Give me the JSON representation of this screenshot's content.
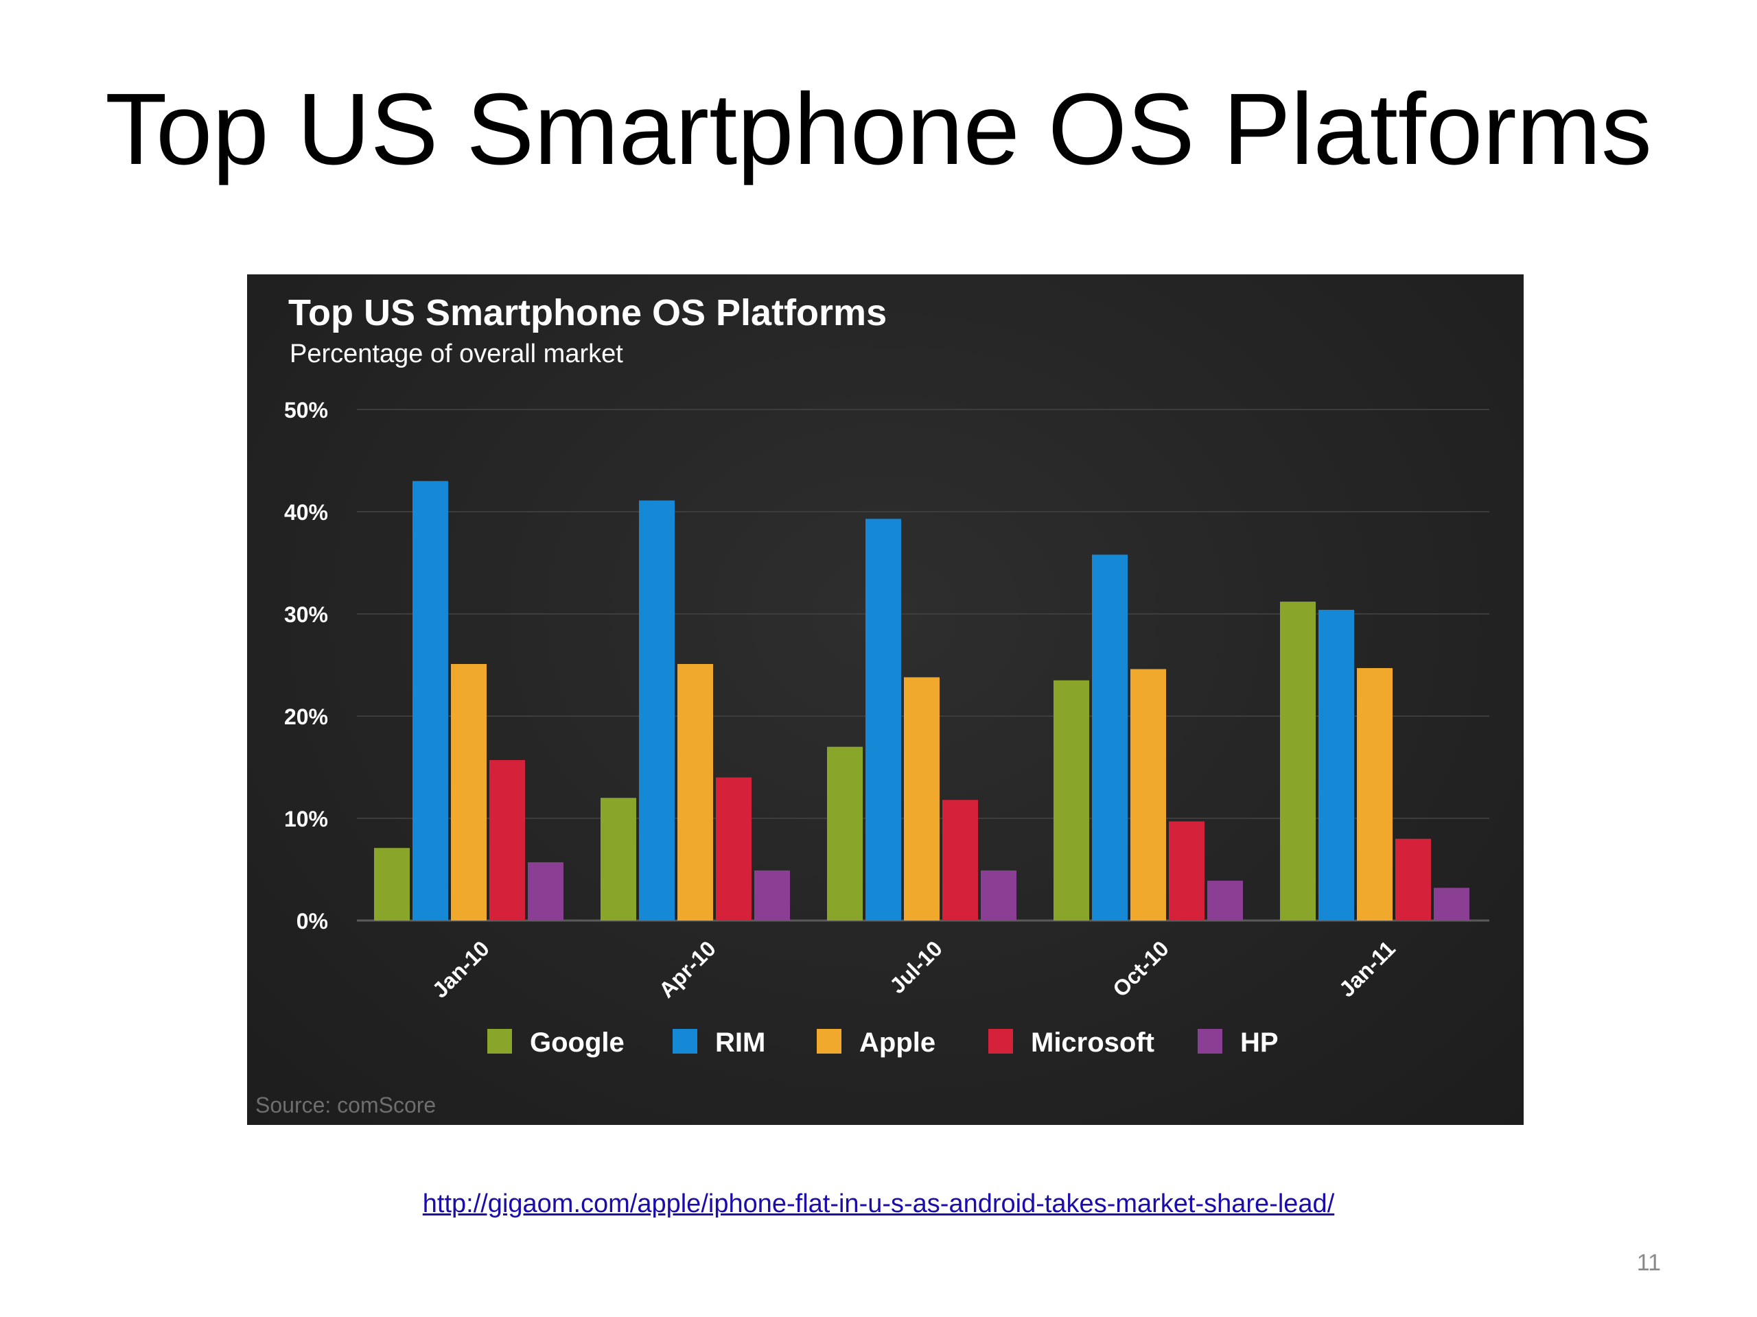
{
  "slide": {
    "title": "Top US Smartphone OS Platforms",
    "link": "http://gigaom.com/apple/iphone-flat-in-u-s-as-android-takes-market-share-lead/",
    "page_number": "11"
  },
  "chart_data": {
    "type": "bar",
    "title": "Top US Smartphone OS Platforms",
    "subtitle": "Percentage of overall market",
    "source": "Source: comScore",
    "categories": [
      "Jan-10",
      "Apr-10",
      "Jul-10",
      "Oct-10",
      "Jan-11"
    ],
    "series": [
      {
        "name": "Google",
        "color": "#8aa62a",
        "values": [
          7.1,
          12.0,
          17.0,
          23.5,
          31.2
        ]
      },
      {
        "name": "RIM",
        "color": "#1588d6",
        "values": [
          43.0,
          41.1,
          39.3,
          35.8,
          30.4
        ]
      },
      {
        "name": "Apple",
        "color": "#f0a92c",
        "values": [
          25.1,
          25.1,
          23.8,
          24.6,
          24.7
        ]
      },
      {
        "name": "Microsoft",
        "color": "#d6213a",
        "values": [
          15.7,
          14.0,
          11.8,
          9.7,
          8.0
        ]
      },
      {
        "name": "HP",
        "color": "#8b3f94",
        "values": [
          5.7,
          4.9,
          4.9,
          3.9,
          3.2
        ]
      }
    ],
    "y_ticks": [
      "0%",
      "10%",
      "20%",
      "30%",
      "40%",
      "50%"
    ],
    "ylim": [
      0,
      50
    ],
    "grid": true,
    "legend": "bottom"
  }
}
